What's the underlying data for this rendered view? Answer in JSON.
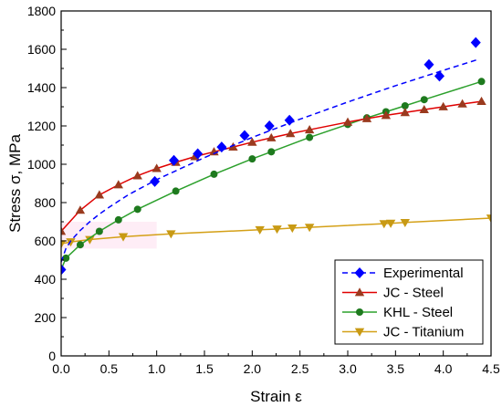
{
  "chart_data": {
    "type": "line",
    "xlabel": "Strain ε",
    "ylabel": "Stress σ, MPa",
    "xlim": [
      0,
      4.5
    ],
    "ylim": [
      0,
      1800
    ],
    "xticks": [
      "0.0",
      "0.5",
      "1.0",
      "1.5",
      "2.0",
      "2.5",
      "3.0",
      "3.5",
      "4.0",
      "4.5"
    ],
    "yticks": [
      "0",
      "200",
      "400",
      "600",
      "800",
      "1000",
      "1200",
      "1400",
      "1600",
      "1800"
    ],
    "legend_position": "bottom-right",
    "grid": false,
    "series": [
      {
        "name": "Experimental",
        "color": "#0000ff",
        "marker": "diamond",
        "line_style": "dashed",
        "points": [
          {
            "x": 0.0,
            "y": 450
          },
          {
            "x": 0.98,
            "y": 910
          },
          {
            "x": 1.18,
            "y": 1020
          },
          {
            "x": 1.43,
            "y": 1055
          },
          {
            "x": 1.68,
            "y": 1090
          },
          {
            "x": 1.92,
            "y": 1150
          },
          {
            "x": 2.18,
            "y": 1200
          },
          {
            "x": 2.39,
            "y": 1230
          },
          {
            "x": 3.85,
            "y": 1520
          },
          {
            "x": 3.96,
            "y": 1460
          },
          {
            "x": 4.34,
            "y": 1635
          }
        ],
        "curve": [
          {
            "x": 0.0,
            "y": 490
          },
          {
            "x": 0.05,
            "y": 560
          },
          {
            "x": 0.1,
            "y": 600
          },
          {
            "x": 0.2,
            "y": 655
          },
          {
            "x": 0.3,
            "y": 700
          },
          {
            "x": 0.4,
            "y": 740
          },
          {
            "x": 0.5,
            "y": 775
          },
          {
            "x": 0.7,
            "y": 840
          },
          {
            "x": 1.0,
            "y": 920
          },
          {
            "x": 1.5,
            "y": 1035
          },
          {
            "x": 2.0,
            "y": 1140
          },
          {
            "x": 2.5,
            "y": 1235
          },
          {
            "x": 3.0,
            "y": 1325
          },
          {
            "x": 3.5,
            "y": 1410
          },
          {
            "x": 4.0,
            "y": 1490
          },
          {
            "x": 4.35,
            "y": 1545
          }
        ]
      },
      {
        "name": "JC - Steel",
        "color": "#e00000",
        "marker": "triangle-up",
        "marker_color": "#9a3a1e",
        "line_style": "solid",
        "points": [
          {
            "x": 0.0,
            "y": 650
          },
          {
            "x": 0.2,
            "y": 760
          },
          {
            "x": 0.4,
            "y": 840
          },
          {
            "x": 0.6,
            "y": 893
          },
          {
            "x": 0.8,
            "y": 940
          },
          {
            "x": 1.0,
            "y": 978
          },
          {
            "x": 1.2,
            "y": 1010
          },
          {
            "x": 1.4,
            "y": 1040
          },
          {
            "x": 1.6,
            "y": 1065
          },
          {
            "x": 1.8,
            "y": 1090
          },
          {
            "x": 2.0,
            "y": 1115
          },
          {
            "x": 2.2,
            "y": 1138
          },
          {
            "x": 2.4,
            "y": 1160
          },
          {
            "x": 2.6,
            "y": 1180
          },
          {
            "x": 3.0,
            "y": 1220
          },
          {
            "x": 3.2,
            "y": 1238
          },
          {
            "x": 3.4,
            "y": 1255
          },
          {
            "x": 3.6,
            "y": 1270
          },
          {
            "x": 3.8,
            "y": 1285
          },
          {
            "x": 4.0,
            "y": 1300
          },
          {
            "x": 4.2,
            "y": 1315
          },
          {
            "x": 4.4,
            "y": 1328
          }
        ]
      },
      {
        "name": "KHL - Steel",
        "color": "#2ca02c",
        "marker": "circle",
        "marker_color": "#1e7a1e",
        "line_style": "solid",
        "points": [
          {
            "x": 0.0,
            "y": 450
          },
          {
            "x": 0.05,
            "y": 510
          },
          {
            "x": 0.2,
            "y": 580
          },
          {
            "x": 0.4,
            "y": 650
          },
          {
            "x": 0.6,
            "y": 710
          },
          {
            "x": 0.8,
            "y": 765
          },
          {
            "x": 1.2,
            "y": 860
          },
          {
            "x": 1.6,
            "y": 948
          },
          {
            "x": 2.0,
            "y": 1028
          },
          {
            "x": 2.2,
            "y": 1065
          },
          {
            "x": 2.6,
            "y": 1140
          },
          {
            "x": 3.0,
            "y": 1208
          },
          {
            "x": 3.2,
            "y": 1242
          },
          {
            "x": 3.4,
            "y": 1274
          },
          {
            "x": 3.6,
            "y": 1305
          },
          {
            "x": 3.8,
            "y": 1337
          },
          {
            "x": 4.4,
            "y": 1432
          }
        ]
      },
      {
        "name": "JC - Titanium",
        "color": "#d4a017",
        "marker": "triangle-down",
        "marker_color": "#c89a14",
        "line_style": "solid",
        "points": [
          {
            "x": 0.0,
            "y": 585
          },
          {
            "x": 0.1,
            "y": 595
          },
          {
            "x": 0.3,
            "y": 607
          },
          {
            "x": 0.65,
            "y": 622
          },
          {
            "x": 1.15,
            "y": 637
          },
          {
            "x": 2.08,
            "y": 658
          },
          {
            "x": 2.26,
            "y": 662
          },
          {
            "x": 2.42,
            "y": 667
          },
          {
            "x": 2.6,
            "y": 671
          },
          {
            "x": 3.38,
            "y": 690
          },
          {
            "x": 3.45,
            "y": 692
          },
          {
            "x": 3.6,
            "y": 696
          },
          {
            "x": 4.5,
            "y": 719
          }
        ]
      }
    ]
  }
}
